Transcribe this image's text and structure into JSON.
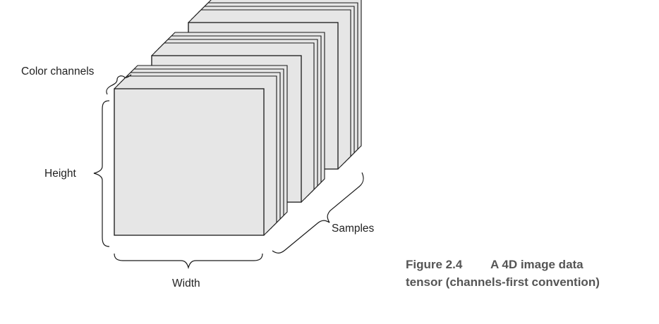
{
  "labels": {
    "color_channels": "Color channels",
    "height": "Height",
    "width": "Width",
    "samples": "Samples"
  },
  "caption": {
    "number": "Figure 2.4",
    "line1": "A 4D image data",
    "line2": "tensor (channels-first convention)"
  },
  "colors": {
    "plate_fill": "#e6e6e6",
    "stroke": "#1a1a1a",
    "caption_text": "#555555"
  }
}
